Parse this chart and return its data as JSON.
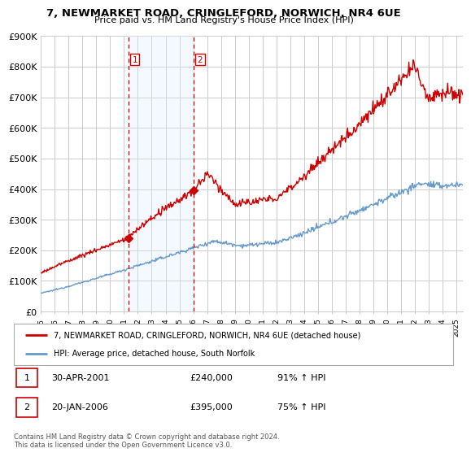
{
  "title": "7, NEWMARKET ROAD, CRINGLEFORD, NORWICH, NR4 6UE",
  "subtitle": "Price paid vs. HM Land Registry's House Price Index (HPI)",
  "ylabel_ticks": [
    "£0",
    "£100K",
    "£200K",
    "£300K",
    "£400K",
    "£500K",
    "£600K",
    "£700K",
    "£800K",
    "£900K"
  ],
  "ylim": [
    0,
    900000
  ],
  "xlim_start": 1995.0,
  "xlim_end": 2025.5,
  "sale1_x": 2001.33,
  "sale1_y": 240000,
  "sale1_label": "1",
  "sale2_x": 2006.05,
  "sale2_y": 395000,
  "sale2_label": "2",
  "vline1_x": 2001.33,
  "vline2_x": 2006.05,
  "shade_start": 2001.33,
  "shade_end": 2006.05,
  "legend_line1": "7, NEWMARKET ROAD, CRINGLEFORD, NORWICH, NR4 6UE (detached house)",
  "legend_line2": "HPI: Average price, detached house, South Norfolk",
  "note1_label": "1",
  "note1_date": "30-APR-2001",
  "note1_price": "£240,000",
  "note1_hpi": "91% ↑ HPI",
  "note2_label": "2",
  "note2_date": "20-JAN-2006",
  "note2_price": "£395,000",
  "note2_hpi": "75% ↑ HPI",
  "footer": "Contains HM Land Registry data © Crown copyright and database right 2024.\nThis data is licensed under the Open Government Licence v3.0.",
  "price_line_color": "#cc0000",
  "hpi_line_color": "#6699cc",
  "shade_color": "#ddeeff",
  "vline_color": "#cc0000",
  "background_color": "#ffffff",
  "grid_color": "#cccccc"
}
